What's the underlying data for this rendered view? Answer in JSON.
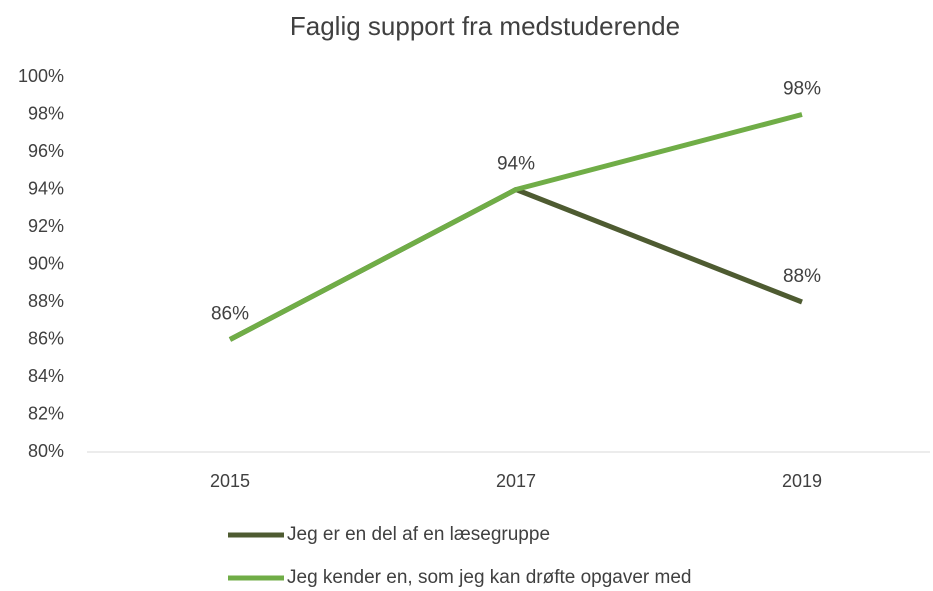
{
  "chart_data": {
    "type": "line",
    "title": "Faglig support fra medstuderende",
    "categories": [
      "2015",
      "2017",
      "2019"
    ],
    "series": [
      {
        "name": "Jeg er en del af en læsegruppe",
        "color": "#4e5b31",
        "values": [
          86,
          94,
          88
        ],
        "value_labels": [
          "86%",
          "94%",
          "88%"
        ]
      },
      {
        "name": "Jeg kender en, som jeg kan drøfte opgaver med",
        "color": "#70ad47",
        "values": [
          86,
          94,
          98
        ],
        "value_labels": [
          null,
          null,
          "98%"
        ]
      }
    ],
    "ylim": [
      80,
      100
    ],
    "yticks": [
      {
        "value": 80,
        "label": "80%"
      },
      {
        "value": 82,
        "label": "82%"
      },
      {
        "value": 84,
        "label": "84%"
      },
      {
        "value": 86,
        "label": "86%"
      },
      {
        "value": 88,
        "label": "88%"
      },
      {
        "value": 90,
        "label": "90%"
      },
      {
        "value": 92,
        "label": "92%"
      },
      {
        "value": 94,
        "label": "94%"
      },
      {
        "value": 96,
        "label": "96%"
      },
      {
        "value": 98,
        "label": "98%"
      },
      {
        "value": 100,
        "label": "100%"
      }
    ],
    "grid": false,
    "legend": "bottom"
  }
}
